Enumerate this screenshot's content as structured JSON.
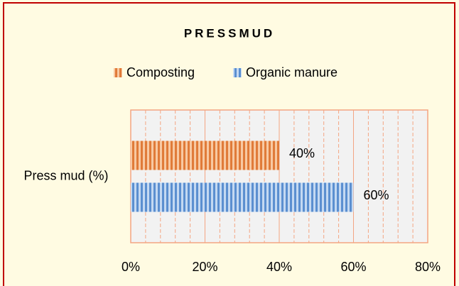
{
  "chart_data": {
    "type": "hbar",
    "title": "PRESSMUD",
    "categories": [
      "Press mud (%)"
    ],
    "series": [
      {
        "name": "Composting",
        "color": "#e07b39",
        "values": [
          40
        ],
        "value_labels": [
          "40%"
        ]
      },
      {
        "name": "Organic manure",
        "color": "#5b8fd0",
        "values": [
          60
        ],
        "value_labels": [
          "60%"
        ]
      }
    ],
    "xlim": [
      0,
      80
    ],
    "xticks": [
      {
        "value": 0,
        "label": "0%"
      },
      {
        "value": 20,
        "label": "20%"
      },
      {
        "value": 40,
        "label": "40%"
      },
      {
        "value": 60,
        "label": "60%"
      },
      {
        "value": 80,
        "label": "80%"
      }
    ],
    "minor_xticks": [
      4,
      8,
      12,
      16,
      24,
      28,
      32,
      36,
      44,
      48,
      52,
      56,
      64,
      68,
      72,
      76
    ],
    "grid": true,
    "legend": "top"
  }
}
